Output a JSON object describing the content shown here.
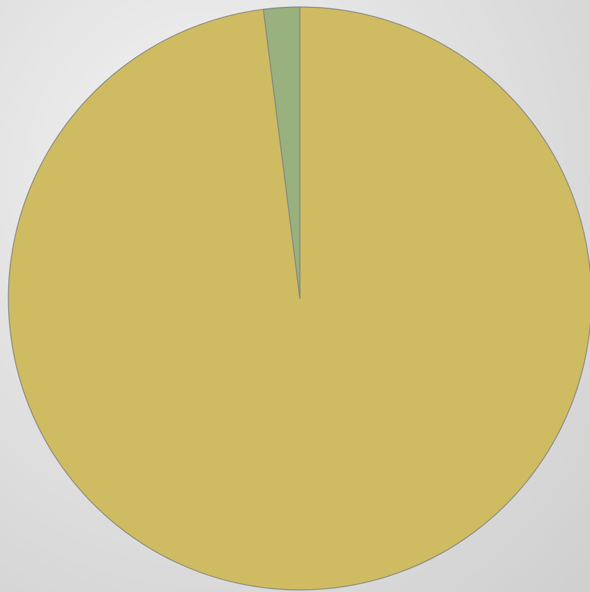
{
  "chart_data": {
    "type": "pie",
    "title": "",
    "start_angle_deg": 0,
    "direction": "clockwise",
    "legend": "none",
    "slices": [
      {
        "label": "",
        "value": 98,
        "color": "#cfbb62"
      },
      {
        "label": "",
        "value": 2,
        "color": "#98b17f"
      }
    ],
    "slice_border_color": "#7f7f7f"
  }
}
